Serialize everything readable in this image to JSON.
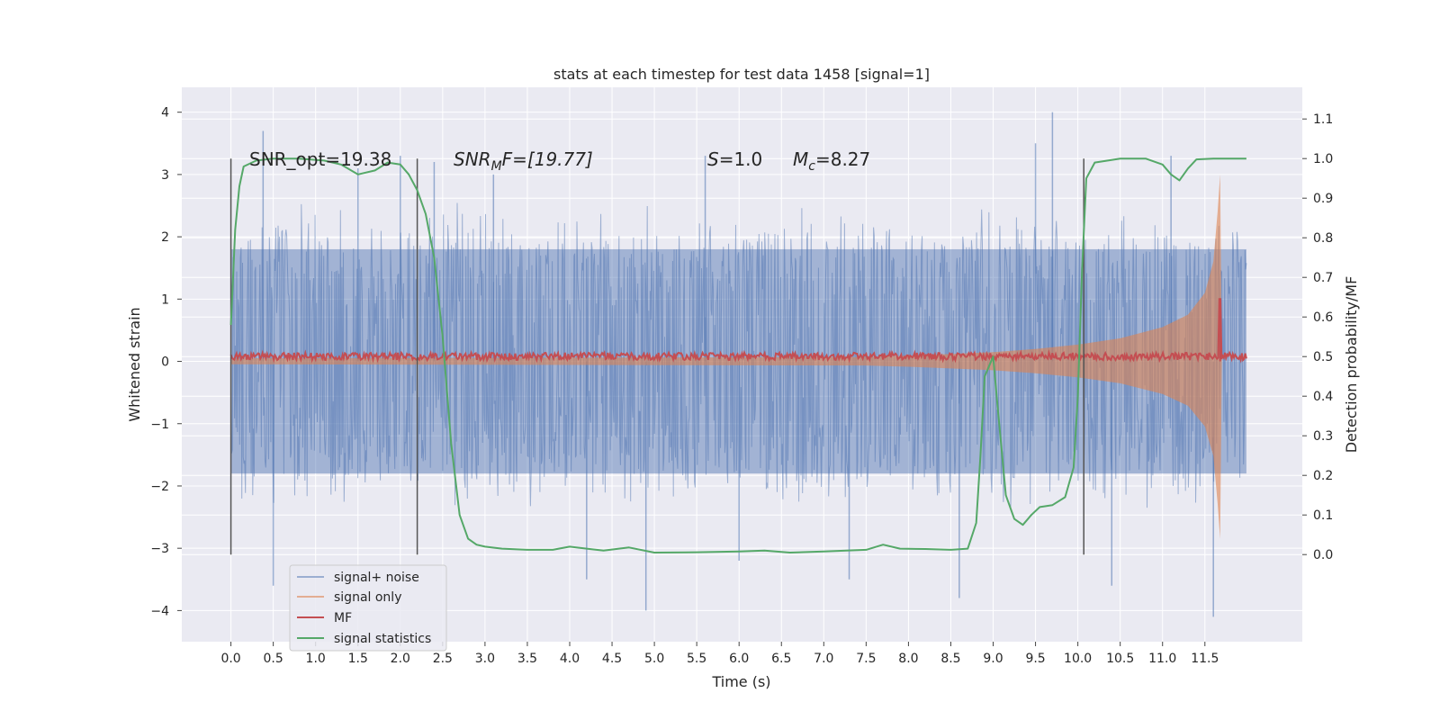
{
  "chart_data": {
    "type": "line",
    "title": "stats at each timestep for test data 1458 [signal=1]",
    "xlabel": "Time (s)",
    "ylabel": "Whitened strain",
    "y2label": "Detection probability/MF",
    "xlim": [
      -0.58,
      12.65
    ],
    "ylim": [
      -4.5,
      4.4
    ],
    "y2lim": [
      -0.22,
      1.18
    ],
    "grid": true,
    "x_ticks": [
      "0.0",
      "0.5",
      "1.0",
      "1.5",
      "2.0",
      "2.5",
      "3.0",
      "3.5",
      "4.0",
      "4.5",
      "5.0",
      "5.5",
      "6.0",
      "6.5",
      "7.0",
      "7.5",
      "8.0",
      "8.5",
      "9.0",
      "9.5",
      "10.0",
      "10.5",
      "11.0",
      "11.5"
    ],
    "y_ticks": [
      "4",
      "3",
      "2",
      "1",
      "0",
      "−1",
      "−2",
      "−3",
      "−4"
    ],
    "y2_ticks": [
      "1.1",
      "1.0",
      "0.9",
      "0.8",
      "0.7",
      "0.6",
      "0.5",
      "0.4",
      "0.3",
      "0.2",
      "0.1",
      "0.0"
    ],
    "legend_position": "lower-left",
    "annotations": {
      "snr_opt": "SNR_opt=19.38",
      "snr_mf": "SNR",
      "snr_mf_sub": "M",
      "snr_mf_rest": "F=[19.77]",
      "s_label": "S",
      "s_value": "=1.0",
      "mc_label": "M",
      "mc_sub": "c",
      "mc_value": "=8.27"
    },
    "window_markers_s": [
      0.0,
      2.2,
      10.07
    ],
    "series": [
      {
        "name": "signal+ noise",
        "color": "#4c72b0",
        "axis": "left",
        "description_band": "dense noise, approx ±2.5 envelope with spikes",
        "t_range": [
          0.0,
          11.99
        ],
        "envelope_upper": [
          2.4,
          2.6,
          2.5,
          2.4,
          2.5,
          2.6,
          2.5,
          2.4,
          2.5,
          2.6,
          2.5,
          2.4,
          2.5,
          2.6,
          2.5,
          2.4,
          2.5,
          2.6,
          2.5,
          2.4,
          2.5,
          2.6,
          2.5,
          2.5
        ],
        "envelope_lower": [
          -2.3,
          -2.4,
          -2.5,
          -2.4,
          -2.3,
          -2.5,
          -2.4,
          -2.5,
          -2.4,
          -2.3,
          -2.5,
          -2.4,
          -2.4,
          -2.5,
          -2.4,
          -2.3,
          -2.5,
          -2.4,
          -2.5,
          -2.4,
          -2.3,
          -2.5,
          -2.4,
          -2.4
        ],
        "spikes": [
          [
            0.38,
            3.7
          ],
          [
            0.5,
            -3.6
          ],
          [
            1.5,
            3.1
          ],
          [
            2.0,
            3.3
          ],
          [
            2.4,
            3.2
          ],
          [
            3.1,
            3.0
          ],
          [
            4.2,
            -3.5
          ],
          [
            4.9,
            -4.0
          ],
          [
            5.6,
            3.3
          ],
          [
            6.0,
            -3.2
          ],
          [
            7.3,
            -3.5
          ],
          [
            8.6,
            -3.8
          ],
          [
            9.5,
            3.5
          ],
          [
            9.7,
            4.0
          ],
          [
            10.4,
            -3.6
          ],
          [
            11.1,
            3.3
          ],
          [
            11.6,
            -4.1
          ]
        ]
      },
      {
        "name": "signal only",
        "color": "#dd8452",
        "axis": "left",
        "t": [
          0.0,
          7.5,
          8.0,
          8.5,
          9.0,
          9.5,
          10.0,
          10.5,
          11.0,
          11.3,
          11.5,
          11.6,
          11.65,
          11.68,
          11.7
        ],
        "amp": [
          0.05,
          0.07,
          0.09,
          0.12,
          0.15,
          0.2,
          0.27,
          0.37,
          0.55,
          0.75,
          1.1,
          1.6,
          2.4,
          3.0,
          0.0
        ]
      },
      {
        "name": "MF",
        "color": "#c44e52",
        "axis": "left",
        "baseline": 0.08,
        "jitter": 0.06,
        "t_range": [
          0.0,
          11.99
        ],
        "peak": [
          11.68,
          1.0
        ]
      },
      {
        "name": "signal statistics",
        "color": "#55a868",
        "axis": "right",
        "t": [
          0.0,
          0.05,
          0.1,
          0.15,
          0.3,
          0.5,
          0.8,
          1.1,
          1.3,
          1.5,
          1.7,
          1.85,
          2.0,
          2.1,
          2.2,
          2.3,
          2.4,
          2.5,
          2.6,
          2.7,
          2.8,
          2.9,
          3.0,
          3.2,
          3.5,
          3.8,
          4.0,
          4.2,
          4.4,
          4.7,
          5.0,
          5.5,
          6.0,
          6.3,
          6.6,
          7.0,
          7.5,
          7.7,
          7.9,
          8.2,
          8.5,
          8.7,
          8.8,
          8.85,
          8.9,
          9.0,
          9.05,
          9.15,
          9.25,
          9.35,
          9.45,
          9.55,
          9.7,
          9.85,
          9.95,
          10.0,
          10.05,
          10.1,
          10.2,
          10.5,
          10.8,
          11.0,
          11.1,
          11.2,
          11.3,
          11.4,
          11.6,
          11.8,
          11.99
        ],
        "values": [
          0.58,
          0.82,
          0.93,
          0.98,
          0.995,
          1.0,
          1.0,
          0.995,
          0.985,
          0.96,
          0.97,
          0.99,
          0.985,
          0.96,
          0.92,
          0.86,
          0.75,
          0.55,
          0.28,
          0.1,
          0.04,
          0.025,
          0.02,
          0.015,
          0.012,
          0.012,
          0.02,
          0.015,
          0.01,
          0.018,
          0.005,
          0.006,
          0.008,
          0.01,
          0.005,
          0.008,
          0.012,
          0.025,
          0.015,
          0.014,
          0.012,
          0.015,
          0.08,
          0.25,
          0.45,
          0.5,
          0.38,
          0.15,
          0.09,
          0.075,
          0.1,
          0.12,
          0.125,
          0.145,
          0.22,
          0.4,
          0.72,
          0.95,
          0.99,
          1.0,
          1.0,
          0.985,
          0.96,
          0.945,
          0.975,
          0.998,
          1.0,
          1.0,
          1.0
        ]
      }
    ]
  }
}
